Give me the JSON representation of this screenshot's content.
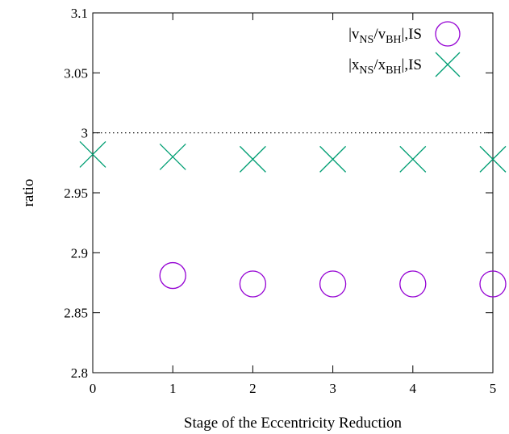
{
  "chart_data": {
    "type": "scatter",
    "title": "",
    "xlabel": "Stage of the Eccentricity Reduction",
    "ylabel": "ratio",
    "xlim": [
      0,
      5
    ],
    "ylim": [
      2.8,
      3.1
    ],
    "x_ticks": [
      "0",
      "1",
      "2",
      "3",
      "4",
      "5"
    ],
    "y_ticks": [
      "2.8",
      "2.85",
      "2.9",
      "2.95",
      "3",
      "3.05",
      "3.1"
    ],
    "grid": false,
    "legend_position": "top-right",
    "reference_line": {
      "y": 3,
      "style": "dotted"
    },
    "series": [
      {
        "name_parts": [
          "|v",
          "NS",
          "/v",
          "BH",
          "|,IS"
        ],
        "marker": "circle",
        "color": "#9400d3",
        "x": [
          1,
          2,
          3,
          4,
          5
        ],
        "y": [
          2.881,
          2.874,
          2.874,
          2.874,
          2.874
        ]
      },
      {
        "name_parts": [
          "|x",
          "NS",
          "/x",
          "BH",
          "|,IS"
        ],
        "marker": "cross",
        "color": "#009e73",
        "x": [
          0,
          1,
          2,
          3,
          4,
          5
        ],
        "y": [
          2.982,
          2.98,
          2.978,
          2.978,
          2.978,
          2.978
        ]
      }
    ]
  }
}
